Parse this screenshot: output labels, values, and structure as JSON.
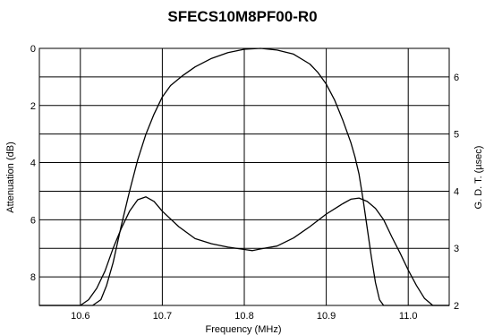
{
  "chart_data": {
    "type": "line",
    "title": "SFECS10M8PF00-R0",
    "xlabel": "Frequency (MHz)",
    "ylabel_left": "Attenuation (dB)",
    "ylabel_right": "G. D. T.  (µsec)",
    "grid": true,
    "x_range": [
      10.55,
      11.05
    ],
    "y_left_range": [
      0,
      9
    ],
    "y_left_inverted": true,
    "y_right_range": [
      2,
      6.5
    ],
    "x_ticks": [
      10.6,
      10.7,
      10.8,
      10.9,
      11.0
    ],
    "x_tick_labels": [
      "10.6",
      "10.7",
      "10.8",
      "10.9",
      "11.0"
    ],
    "y_left_ticks": [
      0,
      2,
      4,
      6,
      8
    ],
    "y_left_tick_labels": [
      "0",
      "2",
      "4",
      "6",
      "8"
    ],
    "y_right_ticks": [
      2,
      3,
      4,
      5,
      6
    ],
    "y_right_tick_labels": [
      "2",
      "3",
      "4",
      "5",
      "6"
    ],
    "series": [
      {
        "axis": "left",
        "x": [
          10.55,
          10.6,
          10.615,
          10.625,
          10.632,
          10.64,
          10.65,
          10.66,
          10.67,
          10.68,
          10.69,
          10.7,
          10.71,
          10.725,
          10.74,
          10.76,
          10.78,
          10.8,
          10.82,
          10.84,
          10.86,
          10.88,
          10.89,
          10.9,
          10.91,
          10.92,
          10.93,
          10.935,
          10.94,
          10.945,
          10.95,
          10.955,
          10.96,
          10.965,
          10.97,
          10.98,
          11.05
        ],
        "y": [
          9.0,
          9.0,
          9.0,
          8.8,
          8.3,
          7.5,
          6.2,
          5.0,
          3.9,
          3.0,
          2.3,
          1.7,
          1.3,
          0.95,
          0.65,
          0.35,
          0.15,
          0.03,
          0.0,
          0.06,
          0.2,
          0.55,
          0.85,
          1.25,
          1.8,
          2.5,
          3.3,
          3.8,
          4.4,
          5.3,
          6.3,
          7.3,
          8.2,
          8.8,
          9.0,
          9.0,
          9.0
        ]
      },
      {
        "axis": "right",
        "x": [
          10.55,
          10.6,
          10.61,
          10.62,
          10.63,
          10.64,
          10.65,
          10.66,
          10.67,
          10.68,
          10.69,
          10.7,
          10.72,
          10.74,
          10.76,
          10.78,
          10.8,
          10.81,
          10.82,
          10.84,
          10.86,
          10.88,
          10.9,
          10.92,
          10.93,
          10.94,
          10.95,
          10.96,
          10.97,
          10.98,
          10.99,
          11.0,
          11.01,
          11.02,
          11.03,
          11.05
        ],
        "y": [
          2.0,
          2.0,
          2.1,
          2.3,
          2.6,
          3.0,
          3.35,
          3.65,
          3.85,
          3.9,
          3.82,
          3.65,
          3.38,
          3.17,
          3.08,
          3.02,
          2.98,
          2.96,
          2.99,
          3.04,
          3.18,
          3.38,
          3.6,
          3.78,
          3.86,
          3.88,
          3.82,
          3.7,
          3.5,
          3.2,
          2.92,
          2.62,
          2.35,
          2.12,
          2.0,
          2.0
        ]
      }
    ]
  }
}
